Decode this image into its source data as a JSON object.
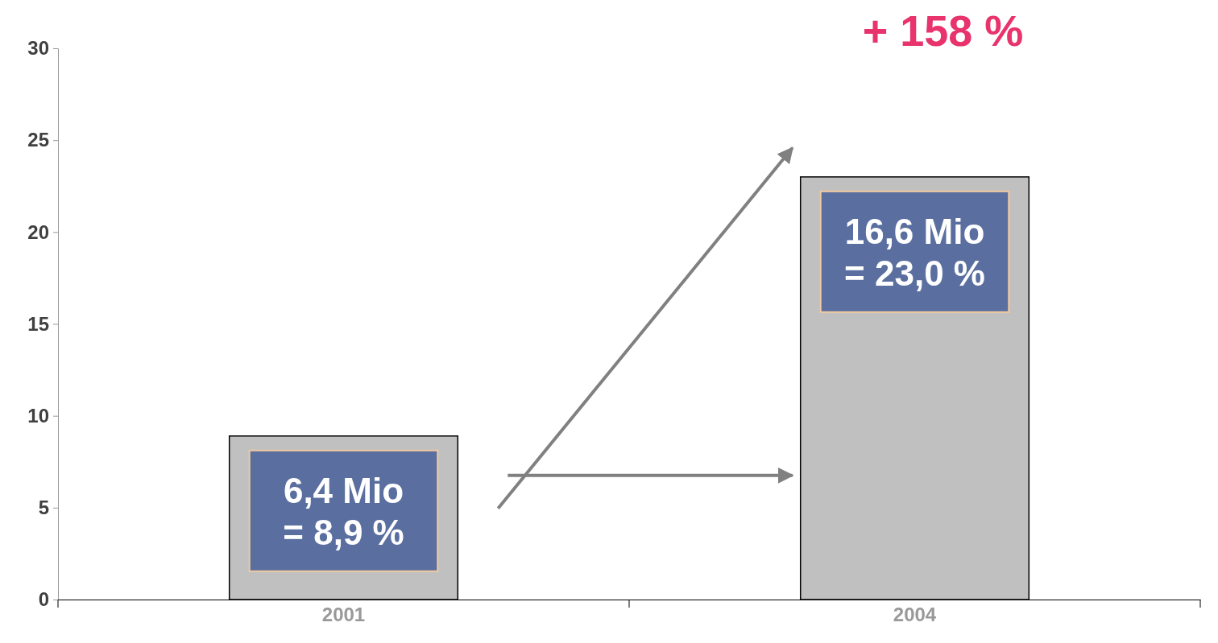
{
  "chart_data": {
    "type": "bar",
    "categories": [
      "2001",
      "2004"
    ],
    "values": [
      8.9,
      23.0
    ],
    "color": "#c0c0c0",
    "value_labels": [
      "6,4 Mio\n= 8,9 %",
      "16,6 Mio\n= 23,0 %"
    ],
    "ylim": [
      0,
      30
    ],
    "yticks": [
      0,
      5,
      10,
      15,
      20,
      25,
      30
    ],
    "annotations": [
      "+ 158 %"
    ]
  }
}
